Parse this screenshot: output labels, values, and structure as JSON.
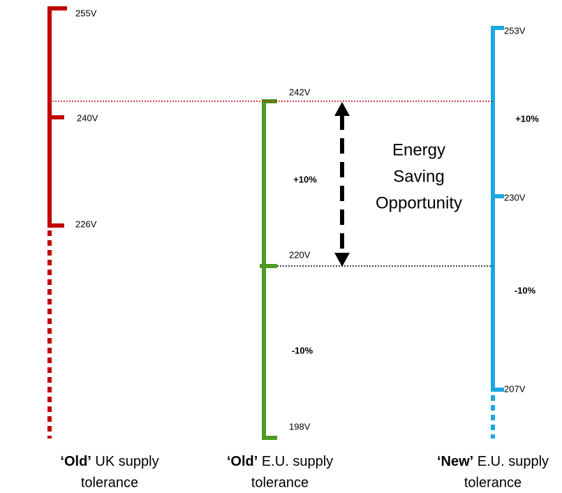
{
  "columns": [
    {
      "caption_mark": "‘Old’",
      "caption_rest": " UK supply",
      "caption_line2": "tolerance",
      "levels": [
        "255V",
        "240V",
        "226V"
      ],
      "percents": []
    },
    {
      "caption_mark": "‘Old’",
      "caption_rest": " E.U. supply",
      "caption_line2": "tolerance",
      "levels": [
        "242V",
        "220V",
        "198V"
      ],
      "percents": [
        "+10%",
        "-10%"
      ]
    },
    {
      "caption_mark": "‘New’",
      "caption_rest": " E.U. supply",
      "caption_line2": "tolerance",
      "levels": [
        "253V",
        "230V",
        "207V"
      ],
      "percents": [
        "+10%",
        "-10%"
      ]
    }
  ],
  "annotation": [
    "Energy",
    "Saving",
    "Opportunity"
  ]
}
